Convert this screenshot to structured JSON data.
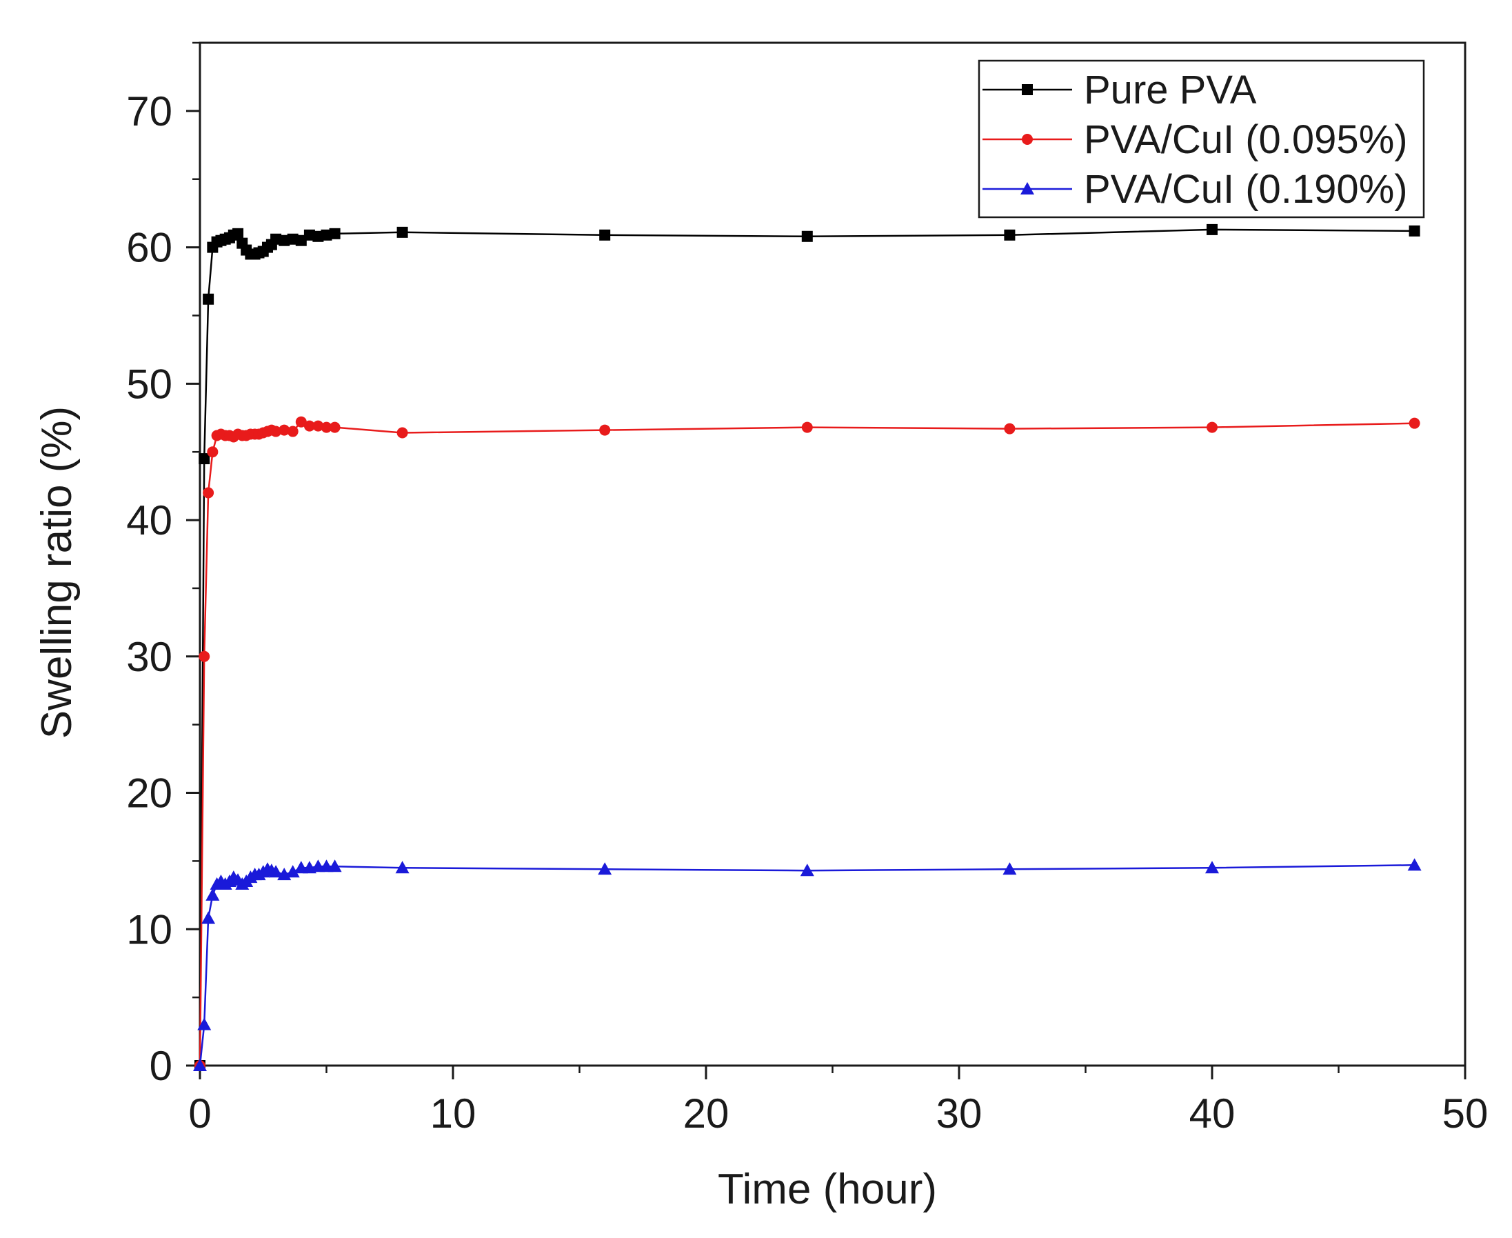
{
  "chart_data": {
    "type": "line",
    "title": "",
    "xlabel": "Time (hour)",
    "ylabel": "Swelling ratio (%)",
    "xlim": [
      0,
      50
    ],
    "ylim": [
      0,
      75
    ],
    "x_ticks": [
      0,
      10,
      20,
      30,
      40,
      50
    ],
    "y_ticks": [
      0,
      10,
      20,
      30,
      40,
      50,
      60,
      70
    ],
    "x_tick_labels": [
      "0",
      "10",
      "20",
      "30",
      "40",
      "50"
    ],
    "y_tick_labels": [
      "0",
      "10",
      "20",
      "30",
      "40",
      "50",
      "60",
      "70"
    ],
    "x_minor_ticks": [
      5,
      15,
      25,
      35,
      45
    ],
    "y_minor_ticks": [
      5,
      15,
      25,
      35,
      45,
      55,
      65,
      75
    ],
    "grid": false,
    "legend_position": "top-right",
    "series": [
      {
        "name": "Pure PVA",
        "color": "#000000",
        "marker": "square",
        "x": [
          0,
          0.17,
          0.33,
          0.5,
          0.67,
          0.83,
          1.0,
          1.17,
          1.33,
          1.5,
          1.67,
          1.83,
          2.0,
          2.17,
          2.33,
          2.5,
          2.67,
          2.83,
          3.0,
          3.33,
          3.67,
          4.0,
          4.33,
          4.67,
          5.0,
          5.33,
          8,
          16,
          24,
          32,
          40,
          48
        ],
        "y": [
          0,
          44.5,
          56.2,
          60.0,
          60.4,
          60.5,
          60.6,
          60.7,
          60.9,
          61.0,
          60.3,
          59.8,
          59.5,
          59.5,
          59.6,
          59.7,
          60.0,
          60.2,
          60.6,
          60.5,
          60.6,
          60.5,
          60.9,
          60.8,
          60.9,
          61.0,
          61.1,
          60.9,
          60.8,
          60.9,
          61.3,
          61.2
        ]
      },
      {
        "name": "PVA/CuI (0.095%)",
        "color": "#e81b1b",
        "marker": "circle",
        "x": [
          0,
          0.17,
          0.33,
          0.5,
          0.67,
          0.83,
          1.0,
          1.17,
          1.33,
          1.5,
          1.67,
          1.83,
          2.0,
          2.17,
          2.33,
          2.5,
          2.67,
          2.83,
          3.0,
          3.33,
          3.67,
          4.0,
          4.33,
          4.67,
          5.0,
          5.33,
          8,
          16,
          24,
          32,
          40,
          48
        ],
        "y": [
          0,
          30.0,
          42.0,
          45.0,
          46.2,
          46.3,
          46.2,
          46.2,
          46.1,
          46.3,
          46.2,
          46.2,
          46.3,
          46.3,
          46.3,
          46.4,
          46.5,
          46.6,
          46.5,
          46.6,
          46.5,
          47.2,
          46.9,
          46.9,
          46.8,
          46.8,
          46.4,
          46.6,
          46.8,
          46.7,
          46.8,
          47.1
        ]
      },
      {
        "name": "PVA/CuI (0.190%)",
        "color": "#1a1ad9",
        "marker": "triangle",
        "x": [
          0,
          0.17,
          0.33,
          0.5,
          0.67,
          0.83,
          1.0,
          1.17,
          1.33,
          1.5,
          1.67,
          1.83,
          2.0,
          2.17,
          2.33,
          2.5,
          2.67,
          2.83,
          3.0,
          3.33,
          3.67,
          4.0,
          4.33,
          4.67,
          5.0,
          5.33,
          8,
          16,
          24,
          32,
          40,
          48
        ],
        "y": [
          0,
          3.0,
          10.8,
          12.5,
          13.3,
          13.5,
          13.3,
          13.5,
          13.8,
          13.6,
          13.3,
          13.5,
          13.8,
          14.0,
          14.0,
          14.2,
          14.4,
          14.3,
          14.2,
          14.0,
          14.2,
          14.5,
          14.5,
          14.6,
          14.6,
          14.6,
          14.5,
          14.4,
          14.3,
          14.4,
          14.5,
          14.7
        ]
      }
    ]
  }
}
